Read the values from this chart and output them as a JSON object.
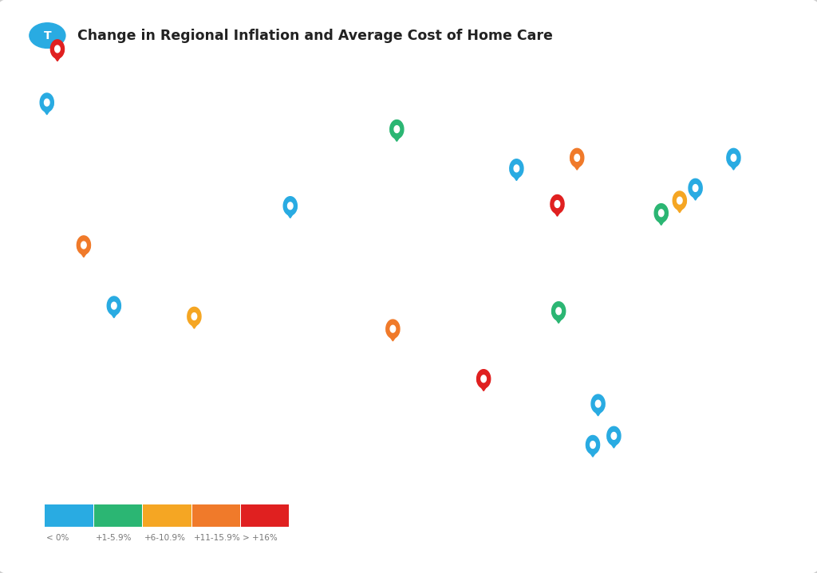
{
  "title": "Change in Regional Inflation and Average Cost of Home Care",
  "title_icon_color": "#29ABE2",
  "background_color": "#ffffff",
  "map_face_color": "#e6e6e6",
  "map_edge_color": "#ffffff",
  "map_outer_edge_color": "#cccccc",
  "legend_colors": [
    "#29ABE2",
    "#2BB673",
    "#F5A623",
    "#F07A2A",
    "#E02020"
  ],
  "legend_labels": [
    "< 0%",
    "+1-5.9%",
    "+6-10.9%",
    "+11-15.9%",
    "> +16%"
  ],
  "pins": [
    {
      "lon": -122.5,
      "lat": 48.5,
      "color": "#E02020"
    },
    {
      "lon": -123.3,
      "lat": 45.5,
      "color": "#29ABE2"
    },
    {
      "lon": -120.5,
      "lat": 37.5,
      "color": "#F07A2A"
    },
    {
      "lon": -118.2,
      "lat": 34.1,
      "color": "#29ABE2"
    },
    {
      "lon": -112.1,
      "lat": 33.5,
      "color": "#F5A623"
    },
    {
      "lon": -104.8,
      "lat": 39.7,
      "color": "#29ABE2"
    },
    {
      "lon": -96.7,
      "lat": 44.0,
      "color": "#2BB673"
    },
    {
      "lon": -87.6,
      "lat": 41.8,
      "color": "#29ABE2"
    },
    {
      "lon": -84.5,
      "lat": 39.8,
      "color": "#E02020"
    },
    {
      "lon": -83.0,
      "lat": 42.4,
      "color": "#F07A2A"
    },
    {
      "lon": -97.0,
      "lat": 32.8,
      "color": "#F07A2A"
    },
    {
      "lon": -90.1,
      "lat": 30.0,
      "color": "#E02020"
    },
    {
      "lon": -84.4,
      "lat": 33.8,
      "color": "#2BB673"
    },
    {
      "lon": -76.6,
      "lat": 39.3,
      "color": "#2BB673"
    },
    {
      "lon": -75.2,
      "lat": 40.0,
      "color": "#F5A623"
    },
    {
      "lon": -74.0,
      "lat": 40.7,
      "color": "#29ABE2"
    },
    {
      "lon": -71.1,
      "lat": 42.4,
      "color": "#29ABE2"
    },
    {
      "lon": -81.4,
      "lat": 28.6,
      "color": "#29ABE2"
    },
    {
      "lon": -80.2,
      "lat": 26.8,
      "color": "#29ABE2"
    },
    {
      "lon": -81.8,
      "lat": 26.3,
      "color": "#29ABE2"
    }
  ],
  "fig_width": 10.24,
  "fig_height": 7.19,
  "dpi": 100
}
